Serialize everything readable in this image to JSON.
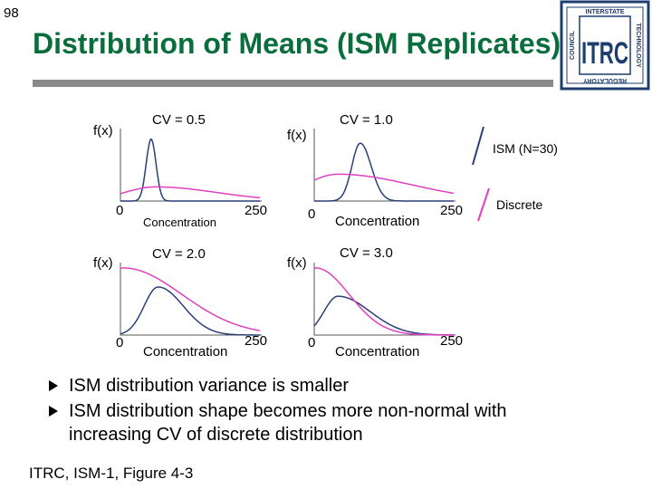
{
  "slide": {
    "number": "98",
    "title": "Distribution of Means (ISM Replicates)"
  },
  "logo": {
    "main_text": "ITRC",
    "top_text": "INTERSTATE",
    "right_text": "TECHNOLOGY",
    "bottom_text": "REGULATORY",
    "left_text": "COUNCIL",
    "color": "#1d3d6e"
  },
  "colors": {
    "title": "#0a6e3c",
    "ism_series": "#2a3f78",
    "discrete_series": "#e040c0",
    "rule": "#8a8a8a"
  },
  "chart_data": [
    {
      "type": "line",
      "title": "CV = 0.5",
      "ylabel": "f(x)",
      "xlabel": "Concentration",
      "x_ticks": [
        "0",
        "250"
      ],
      "series": [
        {
          "name": "ISM (N=30)",
          "color": "#2a3f78",
          "shape": {
            "peak": 0.22,
            "width": 0.035,
            "height": 0.88,
            "skew": 0
          }
        },
        {
          "name": "Discrete",
          "color": "#e040c0",
          "shape": {
            "peak": 0.25,
            "width": 0.22,
            "height": 0.2,
            "skew": 1
          }
        }
      ]
    },
    {
      "type": "line",
      "title": "CV = 1.0",
      "ylabel": "f(x)",
      "xlabel": "Concentration",
      "x_ticks": [
        "0",
        "250"
      ],
      "series": [
        {
          "name": "ISM (N=30)",
          "color": "#2a3f78",
          "shape": {
            "peak": 0.33,
            "width": 0.06,
            "height": 0.82,
            "skew": 0.3
          }
        },
        {
          "name": "Discrete",
          "color": "#e040c0",
          "shape": {
            "peak": 0.17,
            "width": 0.24,
            "height": 0.38,
            "skew": 1.2
          }
        }
      ]
    },
    {
      "type": "line",
      "title": "CV = 2.0",
      "ylabel": "f(x)",
      "xlabel": "Concentration",
      "x_ticks": [
        "0",
        "250"
      ],
      "series": [
        {
          "name": "ISM (N=30)",
          "color": "#2a3f78",
          "shape": {
            "peak": 0.27,
            "width": 0.1,
            "height": 0.68,
            "skew": 0.8
          }
        },
        {
          "name": "Discrete",
          "color": "#e040c0",
          "shape": {
            "peak": 0.02,
            "width": 0.12,
            "height": 0.95,
            "skew": 2.5
          }
        }
      ]
    },
    {
      "type": "line",
      "title": "CV = 3.0",
      "ylabel": "f(x)",
      "xlabel": "Concentration",
      "x_ticks": [
        "0",
        "250"
      ],
      "series": [
        {
          "name": "ISM (N=30)",
          "color": "#2a3f78",
          "shape": {
            "peak": 0.17,
            "width": 0.1,
            "height": 0.55,
            "skew": 1.3
          }
        },
        {
          "name": "Discrete",
          "color": "#e040c0",
          "shape": {
            "peak": 0.01,
            "width": 0.06,
            "height": 0.95,
            "skew": 3.0
          }
        }
      ]
    }
  ],
  "legend": {
    "ism_label": "ISM (N=30)",
    "discrete_label": "Discrete"
  },
  "bullets": [
    "ISM distribution variance is smaller",
    "ISM distribution shape becomes more non-normal with increasing CV of discrete distribution"
  ],
  "footer": "ITRC, ISM-1, Figure 4-3"
}
